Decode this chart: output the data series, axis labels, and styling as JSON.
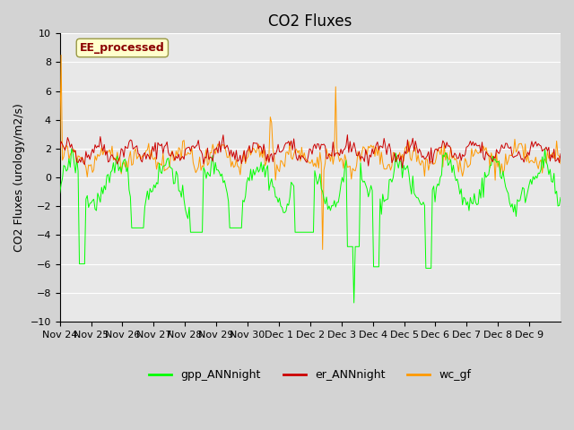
{
  "title": "CO2 Fluxes",
  "ylabel": "CO2 Fluxes (urology/m2/s)",
  "ylim": [
    -10,
    10
  ],
  "yticks": [
    -10,
    -8,
    -6,
    -4,
    -2,
    0,
    2,
    4,
    6,
    8,
    10
  ],
  "x_labels": [
    "Nov 24",
    "Nov 25",
    "Nov 26",
    "Nov 27",
    "Nov 28",
    "Nov 29",
    "Nov 30",
    "Dec 1",
    "Dec 2",
    "Dec 3",
    "Dec 4",
    "Dec 5",
    "Dec 6",
    "Dec 7",
    "Dec 8",
    "Dec 9"
  ],
  "n_points": 384,
  "gpp_color": "#00ff00",
  "er_color": "#cc0000",
  "wc_color": "#ff9900",
  "plot_bg_color": "#e8e8e8",
  "fig_bg_color": "#d3d3d3",
  "legend_label_gpp": "gpp_ANNnight",
  "legend_label_er": "er_ANNnight",
  "legend_label_wc": "wc_gf",
  "annotation_text": "EE_processed",
  "annotation_color": "#8b0000",
  "annotation_bg": "#ffffcc",
  "title_fontsize": 12,
  "label_fontsize": 9,
  "tick_fontsize": 8
}
